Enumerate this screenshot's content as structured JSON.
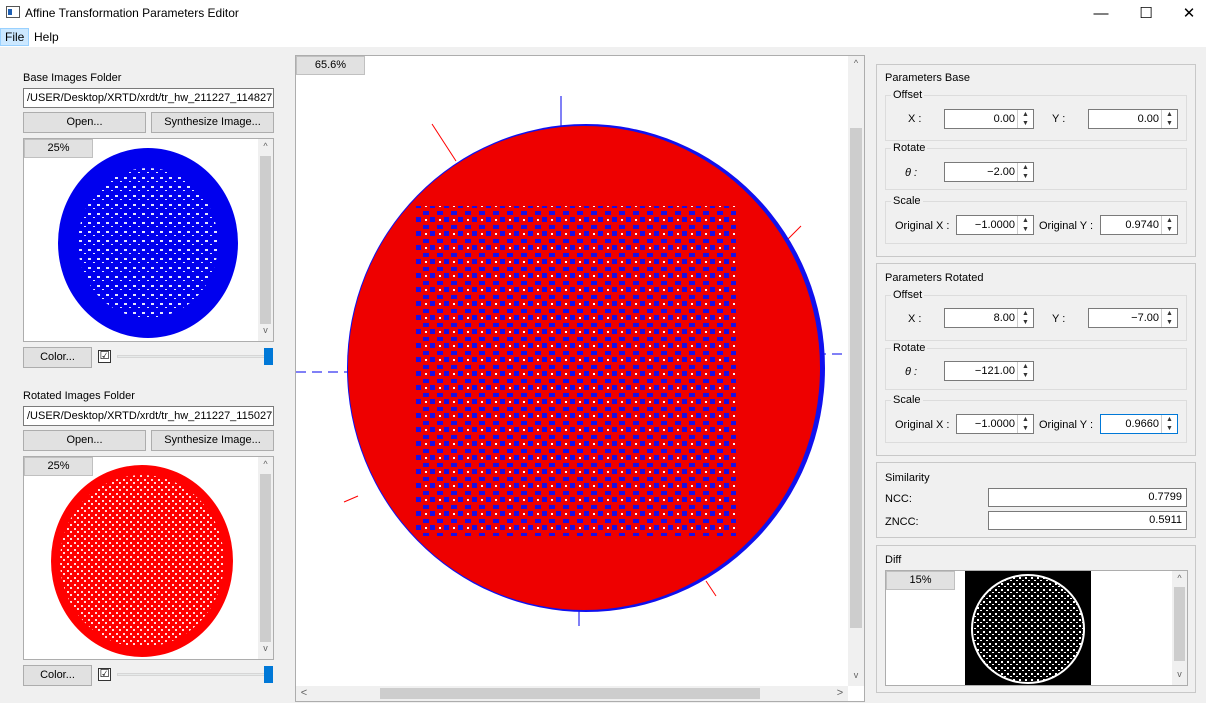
{
  "window": {
    "title": "Affine Transformation Parameters Editor",
    "minimize": "—",
    "maximize": "☐",
    "close": "✕"
  },
  "menu": {
    "file": "File",
    "help": "Help"
  },
  "base": {
    "heading": "Base Images Folder",
    "path": "/USER/Desktop/XRTD/xrdt/tr_hw_211227_114827",
    "open": "Open...",
    "synthesize": "Synthesize Image...",
    "zoom": "25%",
    "color_btn": "Color...",
    "checkbox": "☑",
    "image_color": "#0000ee"
  },
  "rotated": {
    "heading": "Rotated Images Folder",
    "path": "/USER/Desktop/XRTD/xrdt/tr_hw_211227_115027",
    "open": "Open...",
    "synthesize": "Synthesize Image...",
    "zoom": "25%",
    "color_btn": "Color...",
    "checkbox": "☑",
    "image_color": "#ff0000"
  },
  "center": {
    "zoom": "65.6%"
  },
  "params_base": {
    "title": "Parameters Base",
    "offset": "Offset",
    "x_label": "X :",
    "x": "0.00",
    "y_label": "Y :",
    "y": "0.00",
    "rotate": "Rotate",
    "theta_label": "θ :",
    "theta": "−2.00",
    "scale": "Scale",
    "ox_label": "Original X :",
    "ox": "−1.0000",
    "oy_label": "Original Y :",
    "oy": "0.9740"
  },
  "params_rotated": {
    "title": "Parameters Rotated",
    "offset": "Offset",
    "x_label": "X :",
    "x": "8.00",
    "y_label": "Y :",
    "y": "−7.00",
    "rotate": "Rotate",
    "theta_label": "θ :",
    "theta": "−121.00",
    "scale": "Scale",
    "ox_label": "Original X :",
    "ox": "−1.0000",
    "oy_label": "Original Y :",
    "oy": "0.9660"
  },
  "similarity": {
    "title": "Similarity",
    "ncc_label": "NCC:",
    "ncc": "0.7799",
    "zncc_label": "ZNCC:",
    "zncc": "0.5911"
  },
  "diff": {
    "title": "Diff",
    "zoom": "15%"
  },
  "icons": {
    "up": "▲",
    "down": "▼",
    "left": "<",
    "right": ">",
    "chev_up": "^",
    "chev_down": "v"
  }
}
